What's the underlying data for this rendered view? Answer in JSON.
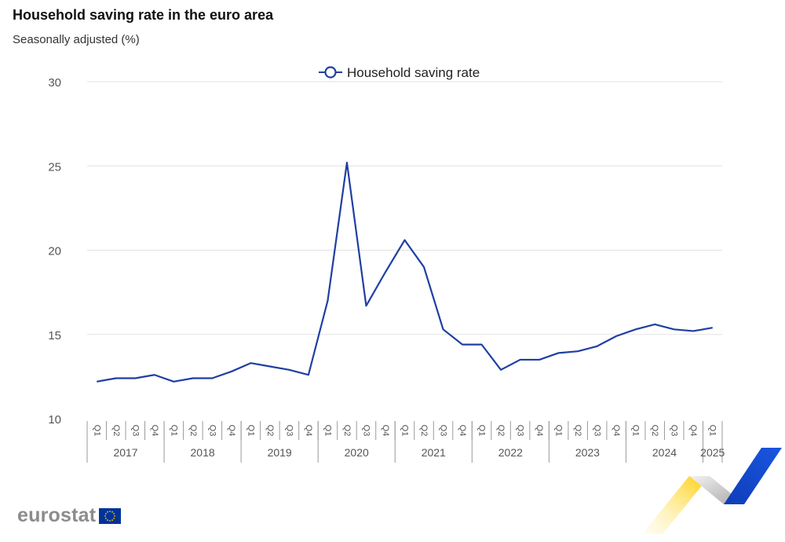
{
  "header": {
    "title": "Household saving rate in the euro area",
    "subtitle": "Seasonally adjusted (%)"
  },
  "logo": {
    "text": "eurostat"
  },
  "colors": {
    "series": "#1f3fa3",
    "grid": "#e2e2e2",
    "axis_text": "#555555",
    "logo_text": "#8c8c8c",
    "flag_blue": "#003399",
    "flag_star": "#ffcc00"
  },
  "chart_data": {
    "type": "line",
    "title": "Household saving rate in the euro area",
    "subtitle": "Seasonally adjusted (%)",
    "xlabel": "",
    "ylabel": "",
    "ylim": [
      10,
      30
    ],
    "yticks": [
      10,
      15,
      20,
      25,
      30
    ],
    "grid": true,
    "legend_position": "top-center",
    "quarters": [
      "Q1",
      "Q2",
      "Q3",
      "Q4",
      "Q1",
      "Q2",
      "Q3",
      "Q4",
      "Q1",
      "Q2",
      "Q3",
      "Q4",
      "Q1",
      "Q2",
      "Q3",
      "Q4",
      "Q1",
      "Q2",
      "Q3",
      "Q4",
      "Q1",
      "Q2",
      "Q3",
      "Q4",
      "Q1",
      "Q2",
      "Q3",
      "Q4",
      "Q1",
      "Q2",
      "Q3",
      "Q4",
      "Q1"
    ],
    "years": [
      {
        "label": "2017",
        "count": 4
      },
      {
        "label": "2018",
        "count": 4
      },
      {
        "label": "2019",
        "count": 4
      },
      {
        "label": "2020",
        "count": 4
      },
      {
        "label": "2021",
        "count": 4
      },
      {
        "label": "2022",
        "count": 4
      },
      {
        "label": "2023",
        "count": 4
      },
      {
        "label": "2024",
        "count": 4
      },
      {
        "label": "2025",
        "count": 1
      }
    ],
    "series": [
      {
        "name": "Household saving rate",
        "values": [
          12.2,
          12.4,
          12.4,
          12.6,
          12.2,
          12.4,
          12.4,
          12.8,
          13.3,
          13.1,
          12.9,
          12.6,
          17.0,
          25.2,
          16.7,
          18.7,
          20.6,
          19.0,
          15.3,
          14.4,
          14.4,
          12.9,
          13.5,
          13.5,
          13.9,
          14.0,
          14.3,
          14.9,
          15.3,
          15.6,
          15.3,
          15.2,
          15.4
        ]
      }
    ]
  }
}
